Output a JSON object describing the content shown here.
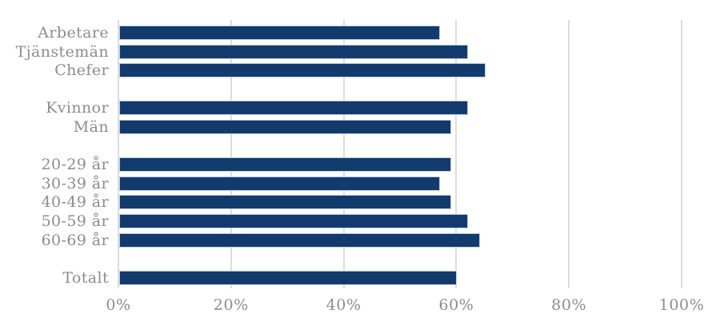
{
  "chart_data": {
    "type": "bar",
    "orientation": "horizontal",
    "title": "",
    "xlabel": "",
    "ylabel": "",
    "xlim": [
      0,
      100
    ],
    "x_ticks": [
      "0%",
      "20%",
      "40%",
      "60%",
      "80%",
      "100%"
    ],
    "unit": "%",
    "grid": true,
    "legend": false,
    "categories": [
      "Arbetare",
      "Tjänstemän",
      "Chefer",
      "Kvinnor",
      "Män",
      "20-29 år",
      "30-39 år",
      "40-49 år",
      "50-59 år",
      "60-69 år",
      "Totalt"
    ],
    "values": [
      57,
      62,
      65,
      62,
      59,
      59,
      57,
      59,
      62,
      64,
      60
    ],
    "groups": [
      {
        "rows": [
          {
            "label": "Arbetare",
            "value": 57
          },
          {
            "label": "Tjänstemän",
            "value": 62
          },
          {
            "label": "Chefer",
            "value": 65
          }
        ]
      },
      {
        "rows": [
          {
            "label": "Kvinnor",
            "value": 62
          },
          {
            "label": "Män",
            "value": 59
          }
        ]
      },
      {
        "rows": [
          {
            "label": "20-29 år",
            "value": 59
          },
          {
            "label": "30-39 år",
            "value": 57
          },
          {
            "label": "40-49 år",
            "value": 59
          },
          {
            "label": "50-59 år",
            "value": 62
          },
          {
            "label": "60-69 år",
            "value": 64
          }
        ]
      },
      {
        "rows": [
          {
            "label": "Totalt",
            "value": 60
          }
        ]
      }
    ],
    "colors": {
      "bar_fill": "#123a6d",
      "bar_border": "#b9cce8",
      "gridline": "#dcdcdc",
      "text": "#8c8c8c",
      "background": "#ffffff"
    }
  }
}
